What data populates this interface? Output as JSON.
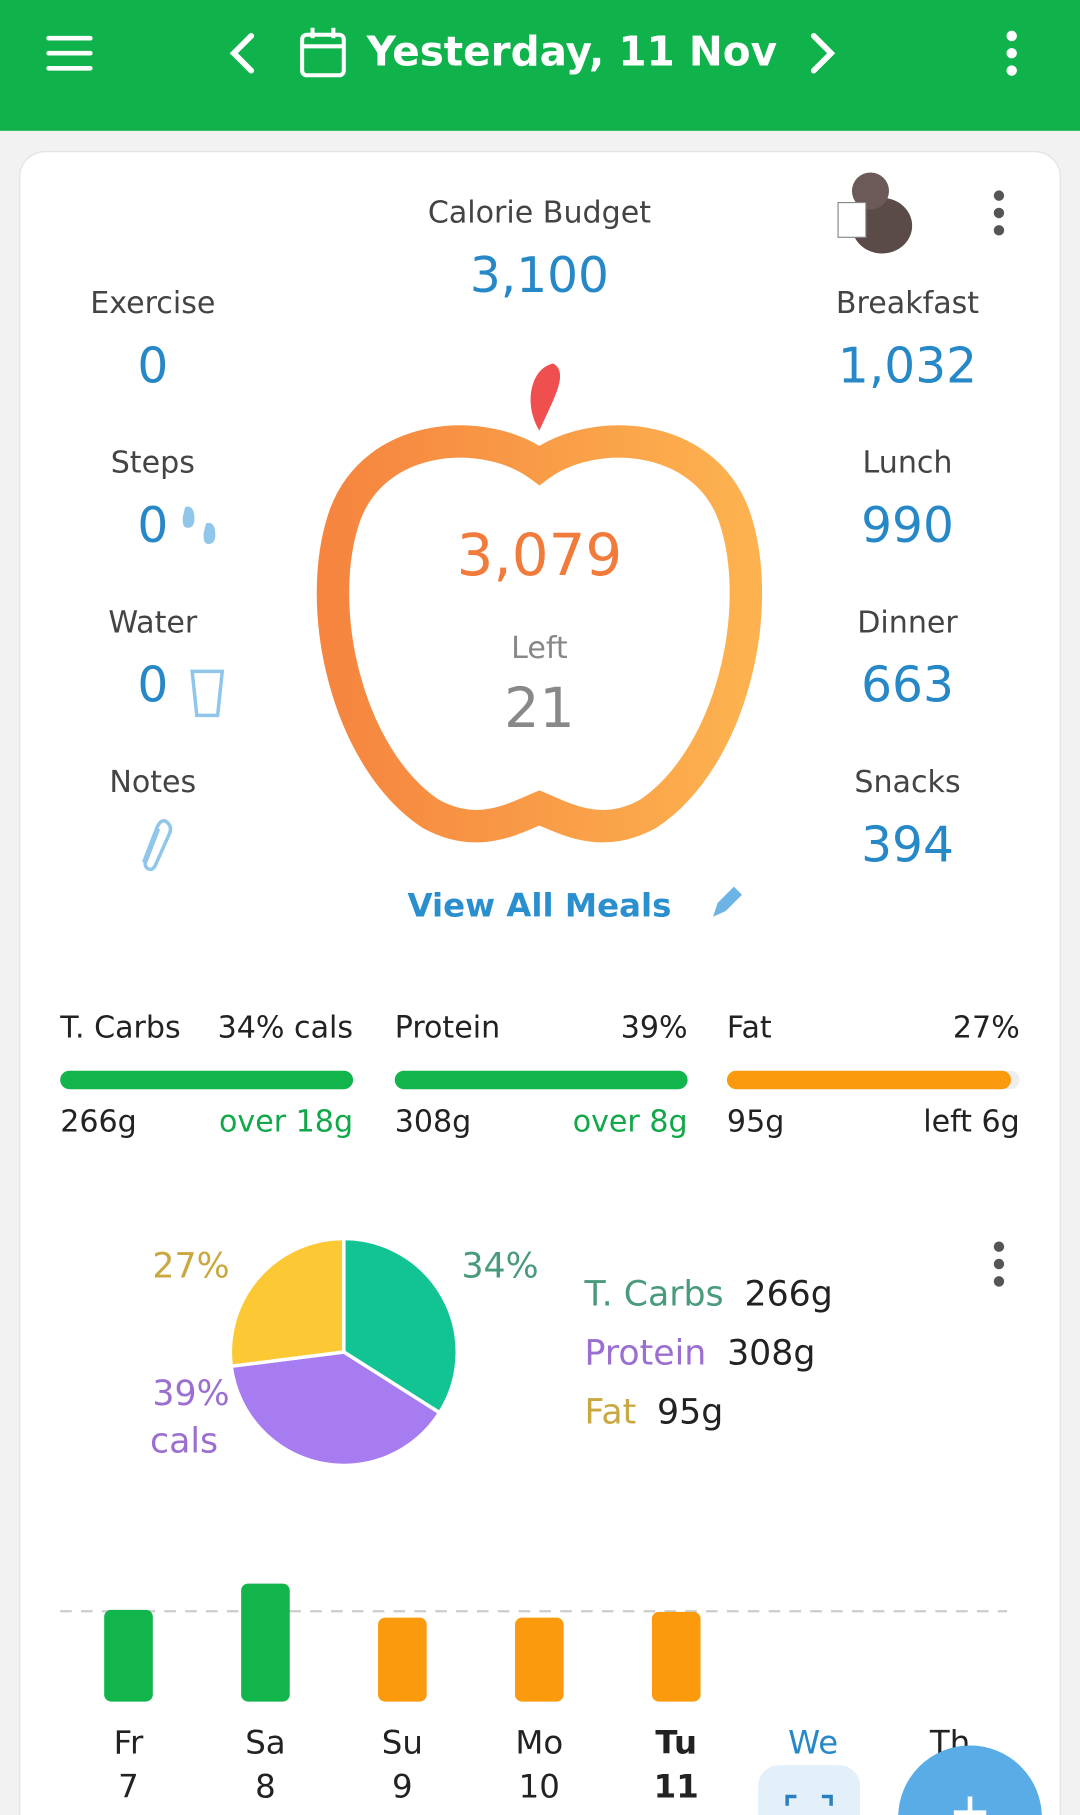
{
  "header": {
    "title": "Yesterday, 11 Nov"
  },
  "summary": {
    "budget_label": "Calorie Budget",
    "budget": "3,100",
    "consumed": "3,079",
    "left_label": "Left",
    "left": "21",
    "view_all": "View All Meals",
    "left_items": [
      {
        "label": "Exercise",
        "value": "0"
      },
      {
        "label": "Steps",
        "value": "0"
      },
      {
        "label": "Water",
        "value": "0"
      },
      {
        "label": "Notes"
      }
    ],
    "meals": [
      {
        "label": "Breakfast",
        "value": "1,032"
      },
      {
        "label": "Lunch",
        "value": "990"
      },
      {
        "label": "Dinner",
        "value": "663"
      },
      {
        "label": "Snacks",
        "value": "394"
      }
    ]
  },
  "macros": [
    {
      "name": "T. Carbs",
      "percent": "34% cals",
      "amount": "266g",
      "status": "over 18g",
      "fill": 1,
      "color": "#12b44c",
      "status_color": "#12a84a"
    },
    {
      "name": "Protein",
      "percent": "39%",
      "amount": "308g",
      "status": "over 8g",
      "fill": 1,
      "color": "#12b44c",
      "status_color": "#12a84a"
    },
    {
      "name": "Fat",
      "percent": "27%",
      "amount": "95g",
      "status": "left 6g",
      "fill": 0.97,
      "color": "#fa9a0c",
      "status_color": "#222222"
    }
  ],
  "macro_pie": {
    "type": "pie",
    "values": [
      34,
      39,
      27
    ],
    "value_labels": [
      "34%",
      "39%",
      "27%"
    ],
    "unit_label": "cals",
    "colors": [
      "#12c493",
      "#a67cf0",
      "#fcc934"
    ],
    "label_colors": [
      "#4a9a7c",
      "#9b6fd0",
      "#c9a840"
    ],
    "legend": [
      {
        "name": "T. Carbs",
        "amount": "266g"
      },
      {
        "name": "Protein",
        "amount": "308g"
      },
      {
        "name": "Fat",
        "amount": "95g"
      }
    ]
  },
  "week_chart": {
    "type": "bar",
    "reference_line": 3100,
    "categories": [
      {
        "day": "Fr",
        "date": "7"
      },
      {
        "day": "Sa",
        "date": "8"
      },
      {
        "day": "Su",
        "date": "9"
      },
      {
        "day": "Mo",
        "date": "10"
      },
      {
        "day": "Tu",
        "date": "11"
      },
      {
        "day": "We"
      },
      {
        "day": "Th"
      }
    ],
    "values": [
      3150,
      4050,
      2880,
      2880,
      3079,
      null,
      null
    ],
    "colors": [
      "#12b44c",
      "#12b44c",
      "#fa9a0c",
      "#fa9a0c",
      "#fa9a0c",
      null,
      null
    ]
  }
}
